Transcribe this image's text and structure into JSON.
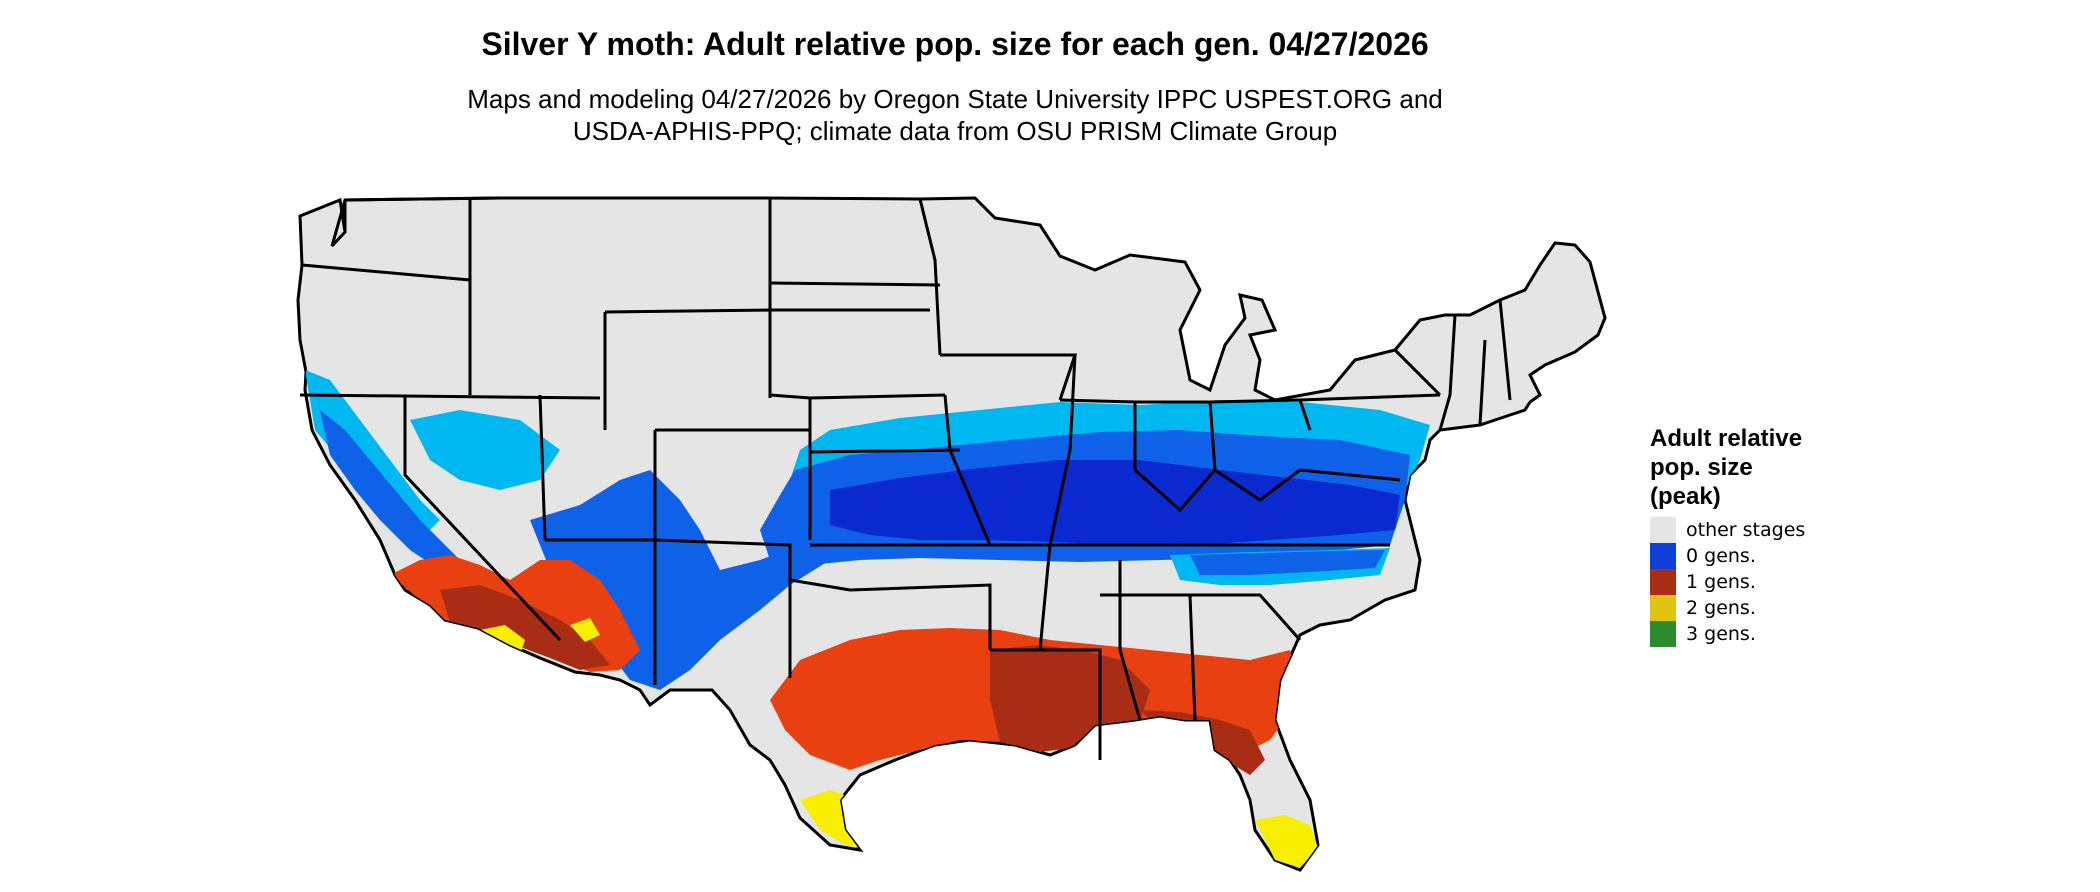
{
  "title": "Silver Y moth: Adult relative pop. size for each gen. 04/27/2026",
  "subtitle_line1": "Maps and modeling 04/27/2026 by Oregon State University IPPC USPEST.ORG and",
  "subtitle_line2": "USDA-APHIS-PPQ; climate data from OSU PRISM Climate Group",
  "legend": {
    "title_lines": [
      "Adult relative",
      "pop. size",
      "(peak)"
    ],
    "items": [
      {
        "label": "other stages",
        "color": "#e5e5e5"
      },
      {
        "label": "0 gens.",
        "color": "#1040d8"
      },
      {
        "label": "1 gens.",
        "color": "#a82d14"
      },
      {
        "label": "2 gens.",
        "color": "#e0c410"
      },
      {
        "label": "3 gens.",
        "color": "#2b8a2b"
      }
    ]
  },
  "map_colors": {
    "land": "#e5e5e5",
    "border": "#000000",
    "light_blue": "#00b8f0",
    "mid_blue": "#0f62e8",
    "dark_blue": "#0a2ad0",
    "orange_red": "#e84010",
    "dark_red": "#a82d14",
    "yellow": "#f8ee00"
  }
}
